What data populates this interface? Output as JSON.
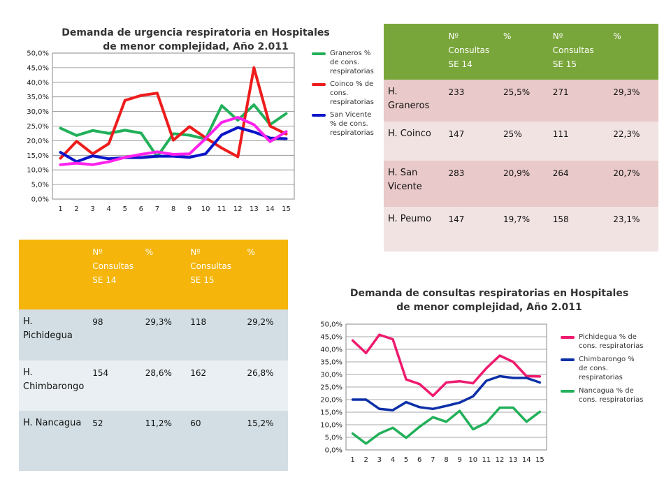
{
  "chart_data": [
    {
      "type": "line",
      "title": "Demanda de urgencia respiratoria en Hospitales de menor complejidad, Año 2.011",
      "categories": [
        "1",
        "2",
        "3",
        "4",
        "5",
        "6",
        "7",
        "8",
        "9",
        "10",
        "11",
        "12",
        "13",
        "14",
        "15"
      ],
      "ylim": [
        0,
        50
      ],
      "yticks": [
        "0,0%",
        "5,0%",
        "10,0%",
        "15,0%",
        "20,0%",
        "25,0%",
        "30,0%",
        "35,0%",
        "40,0%",
        "45,0%",
        "50,0%"
      ],
      "series": [
        {
          "name": "Graneros % de cons. respiratorias",
          "color": "#22b05a",
          "values": [
            24.3,
            21.8,
            23.5,
            22.5,
            23.6,
            22.6,
            14.5,
            22.4,
            21.9,
            20.6,
            32.0,
            27.0,
            32.3,
            25.5,
            29.3
          ]
        },
        {
          "name": "Coinco % de cons. respiratorias",
          "color": "#ee1c1c",
          "values": [
            14.0,
            19.8,
            15.5,
            19.0,
            33.8,
            35.5,
            36.3,
            20.2,
            24.8,
            21.0,
            17.5,
            14.5,
            45.0,
            25.0,
            22.3
          ]
        },
        {
          "name": "San Vicente % de cons. respiratorias",
          "color": "#0a14c8",
          "values": [
            16.0,
            12.8,
            14.8,
            13.8,
            14.2,
            14.2,
            14.7,
            14.7,
            14.3,
            15.5,
            22.0,
            24.5,
            23.0,
            20.9,
            20.7
          ]
        },
        {
          "name": "",
          "color": "#ff22ee",
          "values": [
            11.8,
            12.3,
            11.8,
            12.8,
            14.3,
            15.3,
            16.2,
            15.3,
            15.5,
            20.7,
            26.3,
            28.0,
            25.5,
            19.7,
            23.1
          ]
        }
      ]
    },
    {
      "type": "line",
      "title": "Demanda de consultas respiratorias en Hospitales de menor complejidad, Año 2.011",
      "categories": [
        "1",
        "2",
        "3",
        "4",
        "5",
        "6",
        "7",
        "8",
        "9",
        "10",
        "11",
        "12",
        "13",
        "14",
        "15"
      ],
      "ylim": [
        0,
        50
      ],
      "yticks": [
        "0,0%",
        "5,0%",
        "10,0%",
        "15,0%",
        "20,0%",
        "25,0%",
        "30,0%",
        "35,0%",
        "40,0%",
        "45,0%",
        "50,0%"
      ],
      "series": [
        {
          "name": "Pichidegua % de cons. respiratorias",
          "color": "#ee1a6e",
          "values": [
            43.5,
            38.5,
            45.8,
            44.0,
            28.0,
            26.2,
            21.5,
            26.8,
            27.3,
            26.5,
            32.5,
            37.5,
            35.0,
            29.3,
            29.2
          ]
        },
        {
          "name": "Chimbarongo % de cons. respiratorias",
          "color": "#0d2fa8",
          "values": [
            20.0,
            20.0,
            16.3,
            15.8,
            19.0,
            17.0,
            16.3,
            17.5,
            18.8,
            21.3,
            27.5,
            29.3,
            28.6,
            28.6,
            26.8
          ]
        },
        {
          "name": "Nancagua % de cons. respiratorias",
          "color": "#22b05a",
          "values": [
            6.5,
            2.5,
            6.5,
            8.8,
            4.8,
            9.2,
            13.0,
            11.2,
            15.5,
            8.2,
            10.8,
            16.8,
            16.8,
            11.2,
            15.2
          ]
        }
      ]
    }
  ],
  "table_top": {
    "header_color": "#79a63a",
    "row_colors": [
      "#e9c9c9",
      "#f2e3e3"
    ],
    "headers": [
      "",
      "Nº Consultas SE 14",
      "%",
      "Nº Consultas SE 15",
      "%"
    ],
    "rows": [
      [
        "H. Graneros",
        "233",
        "25,5%",
        "271",
        "29,3%"
      ],
      [
        "H. Coinco",
        "147",
        "25%",
        "111",
        "22,3%"
      ],
      [
        "H. San Vicente",
        "283",
        "20,9%",
        "264",
        "20,7%"
      ],
      [
        "H. Peumo",
        "147",
        "19,7%",
        "158",
        "23,1%"
      ]
    ]
  },
  "table_bottom": {
    "header_color": "#f5b50a",
    "row_colors": [
      "#d2dee4",
      "#e9eff2"
    ],
    "headers": [
      "",
      "Nº Consultas SE 14",
      "%",
      "Nº Consultas SE 15",
      "%"
    ],
    "rows": [
      [
        "H. Pichidegua",
        "98",
        "29,3%",
        "118",
        "29,2%"
      ],
      [
        "H. Chimbarongo",
        "154",
        "28,6%",
        "162",
        "26,8%"
      ],
      [
        "H. Nancagua",
        "52",
        "11,2%",
        "60",
        "15,2%"
      ]
    ]
  }
}
